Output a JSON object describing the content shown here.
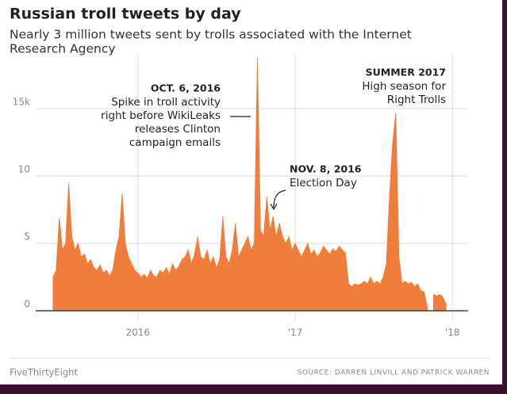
{
  "chart_data": {
    "type": "area",
    "title": "Russian troll tweets by day",
    "subtitle": [
      "Nearly 3 million tweets sent by trolls associated with the Internet",
      "Research Agency"
    ],
    "x": [
      2015.46,
      2015.48,
      2015.5,
      2015.52,
      2015.54,
      2015.56,
      2015.58,
      2015.6,
      2015.62,
      2015.64,
      2015.66,
      2015.68,
      2015.7,
      2015.72,
      2015.74,
      2015.76,
      2015.78,
      2015.8,
      2015.82,
      2015.84,
      2015.86,
      2015.88,
      2015.9,
      2015.92,
      2015.94,
      2015.96,
      2015.98,
      2016.0,
      2016.02,
      2016.04,
      2016.06,
      2016.08,
      2016.1,
      2016.12,
      2016.14,
      2016.16,
      2016.18,
      2016.2,
      2016.22,
      2016.24,
      2016.26,
      2016.28,
      2016.3,
      2016.32,
      2016.34,
      2016.36,
      2016.38,
      2016.4,
      2016.42,
      2016.44,
      2016.46,
      2016.48,
      2016.5,
      2016.52,
      2016.54,
      2016.56,
      2016.58,
      2016.6,
      2016.62,
      2016.64,
      2016.66,
      2016.68,
      2016.7,
      2016.72,
      2016.74,
      2016.76,
      2016.78,
      2016.8,
      2016.82,
      2016.84,
      2016.86,
      2016.88,
      2016.9,
      2016.92,
      2016.94,
      2016.96,
      2016.98,
      2017.0,
      2017.02,
      2017.04,
      2017.06,
      2017.08,
      2017.1,
      2017.12,
      2017.14,
      2017.16,
      2017.18,
      2017.2,
      2017.22,
      2017.24,
      2017.26,
      2017.28,
      2017.3,
      2017.32,
      2017.34,
      2017.36,
      2017.38,
      2017.4,
      2017.42,
      2017.44,
      2017.46,
      2017.48,
      2017.5,
      2017.52,
      2017.54,
      2017.56,
      2017.58,
      2017.6,
      2017.62,
      2017.64,
      2017.66,
      2017.68,
      2017.7,
      2017.72,
      2017.74,
      2017.76,
      2017.78,
      2017.8,
      2017.82,
      2017.84,
      2017.86,
      2017.88,
      2017.9,
      2017.92,
      2017.94,
      2017.96
    ],
    "values": [
      2.5,
      3,
      6.9,
      4.5,
      5,
      9.5,
      5.5,
      4.5,
      5,
      4,
      4.2,
      3.5,
      3.8,
      3.2,
      3,
      3.4,
      2.8,
      3,
      2.6,
      3,
      4.5,
      5.5,
      8.7,
      5,
      4,
      3.5,
      3,
      2.8,
      2.5,
      2.7,
      2.4,
      3,
      2.6,
      2.5,
      3,
      2.8,
      3.2,
      2.7,
      3.5,
      3,
      3.3,
      3.8,
      4,
      4.5,
      3.5,
      4.2,
      5.5,
      4,
      3.8,
      4.5,
      3.5,
      4,
      3.2,
      3.8,
      7,
      4,
      3.5,
      4.5,
      6.5,
      4,
      4.5,
      5,
      5.5,
      4.5,
      5,
      18.8,
      6,
      5.5,
      8.5,
      6,
      7,
      5.5,
      6.5,
      5.5,
      5,
      5.5,
      4.5,
      5,
      4.5,
      4,
      4.5,
      5,
      4.2,
      4.5,
      4,
      4.3,
      4.8,
      4.5,
      4.2,
      4.6,
      4.4,
      4.8,
      4.5,
      4.3,
      2,
      1.8,
      2,
      1.9,
      2,
      2.2,
      2,
      2.5,
      2,
      2.2,
      2,
      2.5,
      3.5,
      8.5,
      12.5,
      14.7,
      4,
      2,
      2.2,
      2,
      2.1,
      1.8,
      2,
      1.5,
      1.4,
      0.3,
      null,
      1.2,
      1.1,
      1.2,
      1,
      0.5
    ],
    "color": "#ef7d3c",
    "xlim": [
      2015.35,
      2018.1
    ],
    "xticks": [
      2016,
      {
        "value": 2017,
        "label": "'17"
      },
      {
        "value": 2018,
        "label": "'18"
      }
    ],
    "ylim": [
      0,
      19
    ],
    "yticks": [
      0,
      5,
      10,
      {
        "value": 15,
        "label": "15k"
      }
    ],
    "grid": true,
    "annotations": [
      {
        "title": "OCT. 6, 2016",
        "lines": [
          "Spike in troll activity",
          "right before WikiLeaks",
          "releases Clinton",
          "campaign emails"
        ]
      },
      {
        "title": "NOV. 8, 2016",
        "lines": [
          "Election Day"
        ]
      },
      {
        "title": "SUMMER 2017",
        "lines": [
          "High season for",
          "Right Trolls"
        ]
      }
    ],
    "footer": {
      "brand": "FiveThirtyEight",
      "source": "SOURCE: DARREN LINVILL AND PATRICK WARREN"
    }
  }
}
